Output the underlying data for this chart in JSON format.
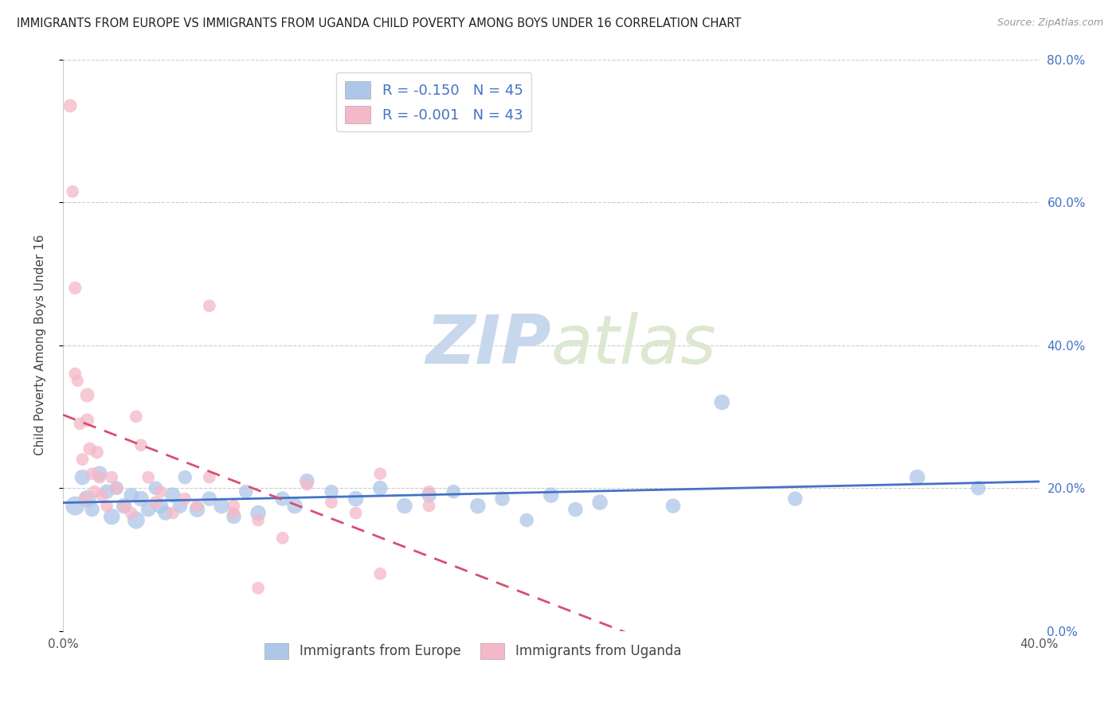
{
  "title": "IMMIGRANTS FROM EUROPE VS IMMIGRANTS FROM UGANDA CHILD POVERTY AMONG BOYS UNDER 16 CORRELATION CHART",
  "source": "Source: ZipAtlas.com",
  "xlabel_left": "Immigrants from Europe",
  "xlabel_right": "Immigrants from Uganda",
  "ylabel": "Child Poverty Among Boys Under 16",
  "xlim": [
    0.0,
    0.4
  ],
  "ylim": [
    0.0,
    0.8
  ],
  "xticks": [
    0.0,
    0.4
  ],
  "yticks": [
    0.0,
    0.2,
    0.4,
    0.6,
    0.8
  ],
  "europe_color": "#aec6e8",
  "uganda_color": "#f4b8c8",
  "europe_line_color": "#4472c4",
  "uganda_line_color": "#d94f6e",
  "legend_R_europe": "R = -0.150",
  "legend_N_europe": "N = 45",
  "legend_R_uganda": "R = -0.001",
  "legend_N_uganda": "N = 43",
  "watermark_zip": "ZIP",
  "watermark_atlas": "atlas",
  "europe_x": [
    0.005,
    0.008,
    0.01,
    0.012,
    0.015,
    0.018,
    0.02,
    0.022,
    0.025,
    0.028,
    0.03,
    0.032,
    0.035,
    0.038,
    0.04,
    0.042,
    0.045,
    0.048,
    0.05,
    0.055,
    0.06,
    0.065,
    0.07,
    0.075,
    0.08,
    0.09,
    0.095,
    0.1,
    0.11,
    0.12,
    0.13,
    0.14,
    0.15,
    0.16,
    0.17,
    0.18,
    0.19,
    0.2,
    0.21,
    0.22,
    0.25,
    0.27,
    0.3,
    0.35,
    0.375
  ],
  "europe_y": [
    0.175,
    0.215,
    0.185,
    0.17,
    0.22,
    0.195,
    0.16,
    0.2,
    0.175,
    0.19,
    0.155,
    0.185,
    0.17,
    0.2,
    0.175,
    0.165,
    0.19,
    0.175,
    0.215,
    0.17,
    0.185,
    0.175,
    0.16,
    0.195,
    0.165,
    0.185,
    0.175,
    0.21,
    0.195,
    0.185,
    0.2,
    0.175,
    0.19,
    0.195,
    0.175,
    0.185,
    0.155,
    0.19,
    0.17,
    0.18,
    0.175,
    0.32,
    0.185,
    0.215,
    0.2
  ],
  "europe_sizes": [
    300,
    200,
    250,
    180,
    200,
    180,
    220,
    160,
    200,
    180,
    250,
    200,
    180,
    160,
    200,
    180,
    200,
    180,
    160,
    200,
    180,
    200,
    180,
    160,
    200,
    180,
    200,
    180,
    160,
    200,
    180,
    200,
    180,
    160,
    200,
    180,
    160,
    200,
    180,
    200,
    180,
    200,
    180,
    200,
    180
  ],
  "uganda_x": [
    0.003,
    0.004,
    0.005,
    0.005,
    0.006,
    0.007,
    0.008,
    0.009,
    0.01,
    0.01,
    0.011,
    0.012,
    0.013,
    0.014,
    0.015,
    0.016,
    0.018,
    0.02,
    0.022,
    0.025,
    0.028,
    0.03,
    0.032,
    0.035,
    0.038,
    0.04,
    0.045,
    0.05,
    0.055,
    0.06,
    0.07,
    0.08,
    0.09,
    0.1,
    0.11,
    0.12,
    0.13,
    0.15,
    0.06,
    0.07,
    0.08,
    0.13,
    0.15
  ],
  "uganda_y": [
    0.735,
    0.615,
    0.48,
    0.36,
    0.35,
    0.29,
    0.24,
    0.185,
    0.33,
    0.295,
    0.255,
    0.22,
    0.195,
    0.25,
    0.215,
    0.19,
    0.175,
    0.215,
    0.2,
    0.175,
    0.165,
    0.3,
    0.26,
    0.215,
    0.18,
    0.195,
    0.165,
    0.185,
    0.175,
    0.215,
    0.165,
    0.155,
    0.13,
    0.205,
    0.18,
    0.165,
    0.08,
    0.175,
    0.455,
    0.175,
    0.06,
    0.22,
    0.195
  ],
  "uganda_sizes": [
    150,
    130,
    140,
    130,
    120,
    130,
    130,
    130,
    170,
    150,
    140,
    130,
    130,
    140,
    130,
    130,
    130,
    130,
    130,
    130,
    130,
    130,
    130,
    130,
    130,
    130,
    130,
    130,
    130,
    130,
    130,
    130,
    130,
    130,
    130,
    130,
    130,
    130,
    130,
    130,
    130,
    130,
    130
  ]
}
